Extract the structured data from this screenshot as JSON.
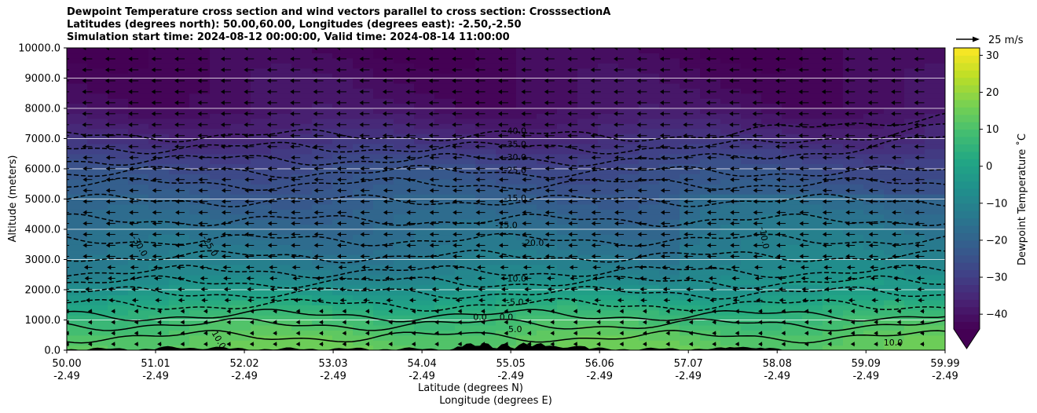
{
  "header": {
    "title_line1": "Dewpoint Temperature cross section and wind vectors parallel to cross section: CrosssectionA",
    "title_line2": "Latitudes (degrees north): 50.00,60.00, Longitudes (degrees east): -2.50,-2.50",
    "title_line3": "Simulation start time: 2024-08-12 00:00:00, Valid time: 2024-08-14 11:00:00"
  },
  "quiver_key": {
    "label": "25 m/s"
  },
  "colors": {
    "text": "#000000",
    "terrain": "#000000",
    "grid": "#ffffff",
    "contour": "#000000"
  },
  "chart_data": {
    "type": "heatmap",
    "colormap": "viridis",
    "ylabel": "Altitude (meters)",
    "xlabel_lat": "Latitude (degrees N)",
    "xlabel_lon": "Longitude (degrees E)",
    "ylim": [
      0,
      10000
    ],
    "y_ticks": [
      "0.0",
      "1000.0",
      "2000.0",
      "3000.0",
      "4000.0",
      "5000.0",
      "6000.0",
      "7000.0",
      "8000.0",
      "9000.0",
      "10000.0"
    ],
    "x_ticks_lat": [
      "50.00",
      "51.01",
      "52.02",
      "53.03",
      "54.04",
      "55.05",
      "56.06",
      "57.07",
      "58.08",
      "59.09",
      "59.99"
    ],
    "x_ticks_lon": [
      "-2.49",
      "-2.49",
      "-2.49",
      "-2.49",
      "-2.49",
      "-2.49",
      "-2.49",
      "-2.49",
      "-2.49",
      "-2.49",
      "-2.49"
    ],
    "colorbar": {
      "label": "Dewpoint Temperature ˚C",
      "range": [
        -44,
        32
      ],
      "ticks": [
        "30",
        "20",
        "10",
        "0",
        "−10",
        "−20",
        "−30",
        "−40"
      ],
      "extend": "min"
    },
    "grid": "horizontal",
    "profile_altitudes": [
      0,
      500,
      1000,
      1500,
      2000,
      2500,
      3000,
      3500,
      4000,
      5000,
      6000,
      7000,
      8000,
      10000
    ],
    "profile_dewpoint": [
      14,
      12,
      8,
      3,
      -4,
      -10,
      -13,
      -15,
      -17,
      -21,
      -26,
      -34,
      -40,
      -43
    ],
    "contour_labels": [
      {
        "text": "-40.0",
        "x": 55.1,
        "y": 7160
      },
      {
        "text": "-35.0",
        "x": 55.1,
        "y": 6720
      },
      {
        "text": "-30.0",
        "x": 55.1,
        "y": 6280
      },
      {
        "text": "-25.0",
        "x": 55.1,
        "y": 5860
      },
      {
        "text": "-15.0",
        "x": 55.1,
        "y": 4940
      },
      {
        "text": "-15.0",
        "x": 55.0,
        "y": 4040
      },
      {
        "text": "-20.0",
        "x": 55.3,
        "y": 3450
      },
      {
        "text": "-10.0",
        "x": 55.1,
        "y": 2270
      },
      {
        "text": "-5.0",
        "x": 55.1,
        "y": 1500
      },
      {
        "text": "0.0",
        "x": 54.7,
        "y": 1000
      },
      {
        "text": "0.0",
        "x": 55.0,
        "y": 1000
      },
      {
        "text": "5.0",
        "x": 55.1,
        "y": 600
      },
      {
        "text": "10.0",
        "x": 51.7,
        "y": 300
      },
      {
        "text": "-30.0",
        "x": 50.8,
        "y": 3400
      },
      {
        "text": "-25.0",
        "x": 51.6,
        "y": 3400
      },
      {
        "text": "-10.0",
        "x": 57.9,
        "y": 3700
      },
      {
        "text": "10.0",
        "x": 59.4,
        "y": 150
      }
    ],
    "wind_vectors": "westward, roughly uniform above 2500 m, weak near surface"
  }
}
